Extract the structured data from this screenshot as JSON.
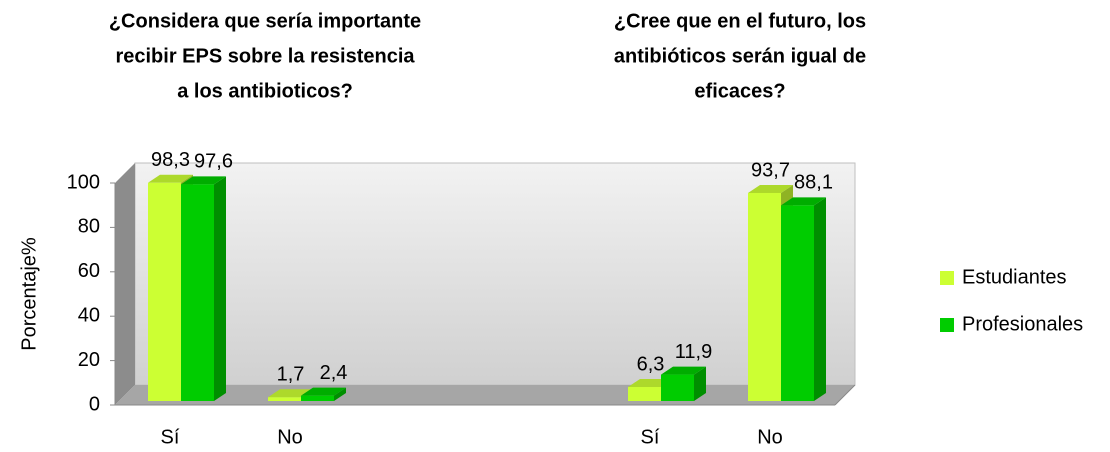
{
  "chart_data": {
    "type": "bar3d",
    "titles": [
      [
        "¿Considera que sería importante",
        "recibir EPS sobre la resistencia",
        "a los antibioticos?"
      ],
      [
        "¿Cree que en el futuro, los",
        "antibióticos serán igual de",
        "eficaces?"
      ]
    ],
    "y_label": "Porcentaje%",
    "categories": [
      "Sí",
      "No",
      null,
      null,
      "Sí",
      "No"
    ],
    "series": [
      {
        "name": "Estudiantes",
        "color": "#ccff33",
        "values": [
          98.3,
          1.7,
          null,
          null,
          6.3,
          93.7
        ],
        "value_labels": [
          "98,3",
          "1,7",
          null,
          null,
          "6,3",
          "93,7"
        ]
      },
      {
        "name": "Profesionales",
        "color": "#00cc00",
        "values": [
          97.6,
          2.4,
          null,
          null,
          11.9,
          88.1
        ],
        "value_labels": [
          "97,6",
          "2,4",
          null,
          null,
          "11,9",
          "88,1"
        ]
      }
    ],
    "ylim": [
      0,
      100
    ],
    "yticks": [
      0,
      20,
      40,
      60,
      80,
      100
    ],
    "grid": false,
    "legend": "right"
  }
}
